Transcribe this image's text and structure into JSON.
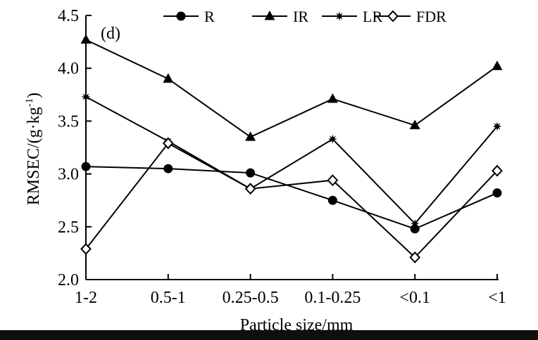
{
  "chart_data": {
    "type": "line",
    "panel_label": "(d)",
    "title": "",
    "xlabel": "Particle size/mm",
    "ylabel": "RMSEC/(g·kg",
    "ylabel_sup": "-1",
    "ylabel_close": ")",
    "categories": [
      "1-2",
      "0.5-1",
      "0.25-0.5",
      "0.1-0.25",
      "<0.1",
      "<1"
    ],
    "ylim": [
      2.0,
      4.5
    ],
    "yticks": [
      "2.0",
      "2.5",
      "3.0",
      "3.5",
      "4.0",
      "4.5"
    ],
    "grid": false,
    "legend_position": "top",
    "series": [
      {
        "name": "R",
        "marker": "circle",
        "values": [
          3.07,
          3.05,
          3.01,
          2.75,
          2.48,
          2.82
        ]
      },
      {
        "name": "IR",
        "marker": "triangle",
        "values": [
          4.27,
          3.9,
          3.35,
          3.71,
          3.46,
          4.02
        ]
      },
      {
        "name": "LR",
        "marker": "star",
        "values": [
          3.73,
          3.31,
          2.86,
          3.33,
          2.53,
          3.45
        ]
      },
      {
        "name": "FDR",
        "marker": "diamond-open",
        "values": [
          2.29,
          3.29,
          2.86,
          2.94,
          2.21,
          3.03
        ]
      }
    ],
    "colors": {
      "line": "#000000",
      "background": "#ffffff"
    }
  }
}
